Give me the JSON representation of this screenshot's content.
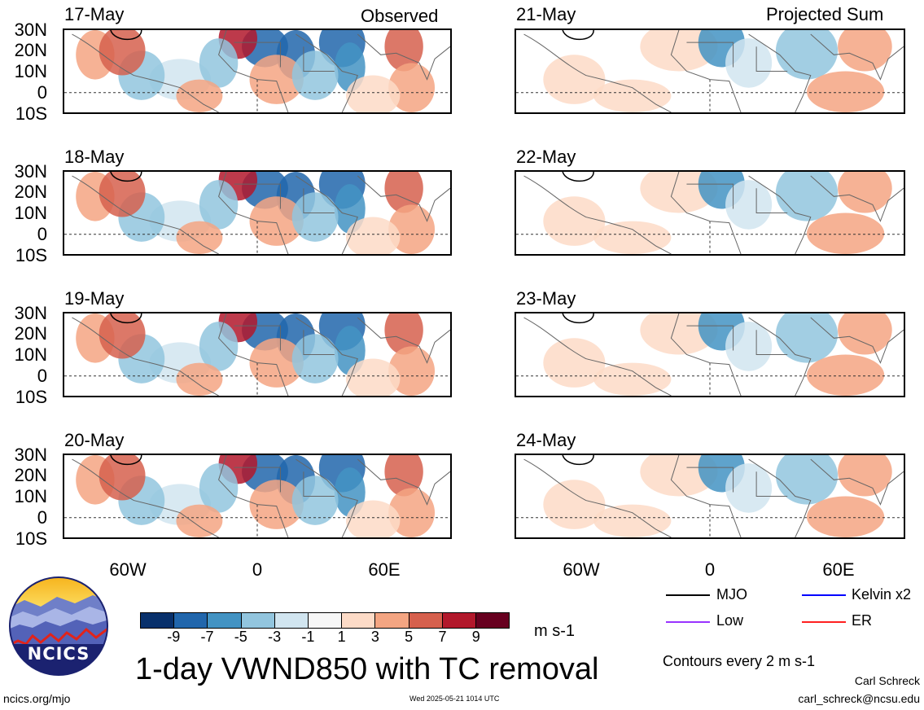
{
  "headers": {
    "left": "Observed",
    "right": "Projected Sum"
  },
  "dates_left": [
    "17-May",
    "18-May",
    "19-May",
    "20-May"
  ],
  "dates_right": [
    "21-May",
    "22-May",
    "23-May",
    "24-May"
  ],
  "lat_labels": [
    "30N",
    "20N",
    "10N",
    "0",
    "10S"
  ],
  "lon_labels": [
    "60W",
    "0",
    "60E"
  ],
  "colorbar": {
    "colors": [
      "#08306b",
      "#2166ac",
      "#4393c3",
      "#92c5de",
      "#d1e5f0",
      "#f7f7f7",
      "#fddbc7",
      "#f4a582",
      "#d6604d",
      "#b2182b",
      "#67001f"
    ],
    "ticks": [
      "-9",
      "-7",
      "-5",
      "-3",
      "-1",
      "1",
      "3",
      "5",
      "7",
      "9"
    ],
    "units": "m s-1"
  },
  "title": "1-day VWND850 with TC removal",
  "legend": [
    {
      "label": "MJO",
      "color": "#000000"
    },
    {
      "label": "Kelvin x2",
      "color": "#0000ff"
    },
    {
      "label": "Low",
      "color": "#9933ff"
    },
    {
      "label": "ER",
      "color": "#ff2020"
    }
  ],
  "contour_note": "Contours every 2 m s-1",
  "logo_text": "NCICS",
  "footer": {
    "url": "ncics.org/mjo",
    "timestamp": "Wed 2025-05-21 1014 UTC",
    "author": "Carl Schreck",
    "email": "carl_schreck@ncsu.edu"
  }
}
